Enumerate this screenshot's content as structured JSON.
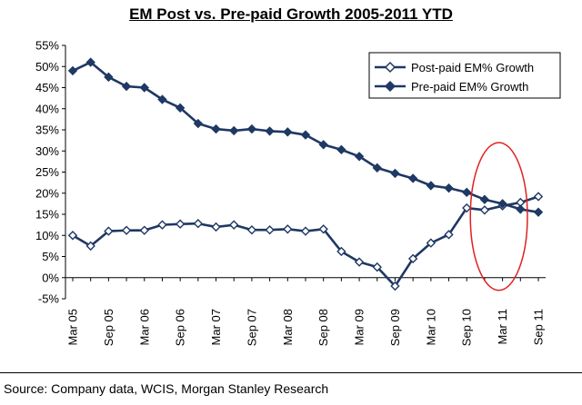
{
  "chart_data": {
    "type": "line",
    "title": "EM Post vs. Pre-paid Growth 2005-2011 YTD",
    "xlabel": "",
    "ylabel": "",
    "ylim": [
      -5,
      55
    ],
    "y_ticks": [
      "55%",
      "50%",
      "45%",
      "40%",
      "35%",
      "30%",
      "25%",
      "20%",
      "15%",
      "10%",
      "5%",
      "0%",
      "-5%"
    ],
    "y_tick_values": [
      55,
      50,
      45,
      40,
      35,
      30,
      25,
      20,
      15,
      10,
      5,
      0,
      -5
    ],
    "x": [
      "Mar 05",
      "Jun 05",
      "Sep 05",
      "Dec 05",
      "Mar 06",
      "Jun 06",
      "Sep 06",
      "Dec 06",
      "Mar 07",
      "Jun 07",
      "Sep 07",
      "Dec 07",
      "Mar 08",
      "Jun 08",
      "Sep 08",
      "Dec 08",
      "Mar 09",
      "Jun 09",
      "Sep 09",
      "Dec 09",
      "Mar 10",
      "Jun 10",
      "Sep 10",
      "Dec 10",
      "Mar 11",
      "Jun 11",
      "Sep 11"
    ],
    "x_tick_labels": [
      "Mar 05",
      "Sep 05",
      "Mar 06",
      "Sep 06",
      "Mar 07",
      "Sep 07",
      "Mar 08",
      "Sep 08",
      "Mar 09",
      "Sep 09",
      "Mar 10",
      "Sep 10",
      "Mar 11",
      "Sep 11"
    ],
    "series": [
      {
        "name": "Post-paid EM% Growth",
        "marker": "hollow-diamond",
        "color": "#1f3864",
        "values": [
          10.0,
          7.5,
          11.0,
          11.2,
          11.2,
          12.5,
          12.7,
          12.8,
          12.0,
          12.5,
          11.3,
          11.3,
          11.5,
          11.0,
          11.5,
          6.2,
          3.7,
          2.5,
          -2.0,
          4.5,
          8.2,
          10.2,
          16.5,
          16.0,
          17.0,
          17.8,
          19.2
        ]
      },
      {
        "name": "Pre-paid EM% Growth",
        "marker": "filled-diamond",
        "color": "#1f3864",
        "values": [
          49.0,
          51.0,
          47.5,
          45.3,
          45.0,
          42.2,
          40.2,
          36.5,
          35.2,
          34.8,
          35.2,
          34.7,
          34.5,
          33.8,
          31.5,
          30.3,
          28.7,
          26.0,
          24.7,
          23.5,
          21.8,
          21.2,
          20.2,
          18.5,
          17.5,
          16.2,
          15.5
        ]
      }
    ],
    "legend_position": "top-right",
    "grid": false,
    "annotation": {
      "shape": "ellipse",
      "color": "#e02020",
      "x_range": [
        "Sep 10",
        "Sep 11"
      ],
      "y_range": [
        -3,
        32
      ]
    }
  },
  "source": "Source: Company data, WCIS, Morgan Stanley Research"
}
